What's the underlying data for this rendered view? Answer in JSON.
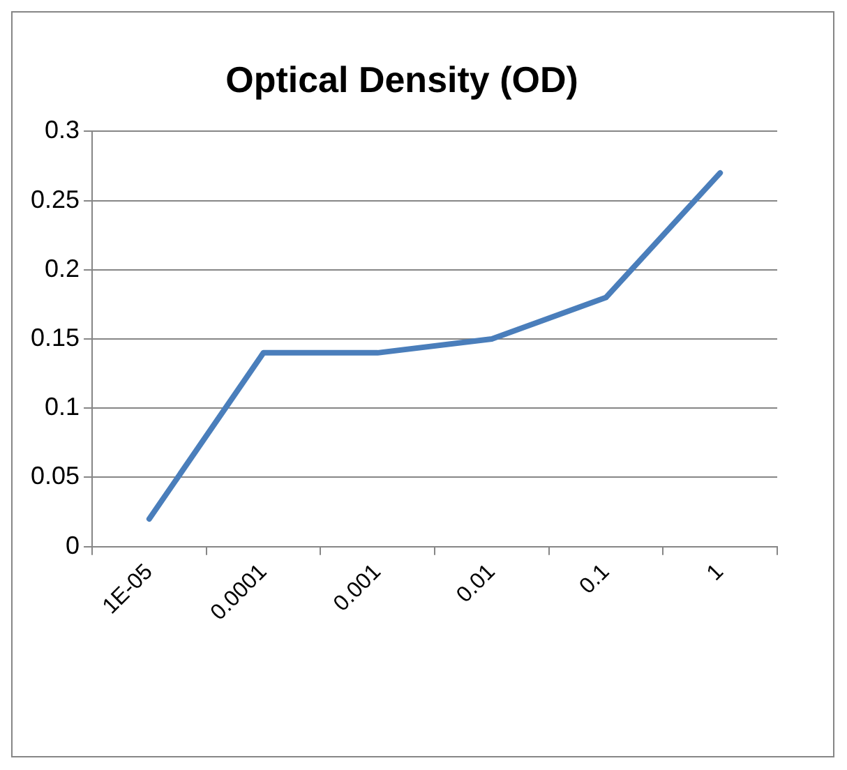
{
  "chart_data": {
    "type": "line",
    "title": "Optical Density (OD)",
    "categories": [
      "1E-05",
      "0.0001",
      "0.001",
      "0.01",
      "0.1",
      "1"
    ],
    "series": [
      {
        "color": "#4a7ebb",
        "values": [
          0.02,
          0.14,
          0.14,
          0.15,
          0.18,
          0.27
        ]
      }
    ],
    "ylim": [
      0,
      0.3
    ],
    "yticks": [
      0,
      0.05,
      0.1,
      0.15,
      0.2,
      0.25,
      0.3
    ],
    "grid": "y",
    "legend": false,
    "marker": "none",
    "line_style": "solid"
  }
}
